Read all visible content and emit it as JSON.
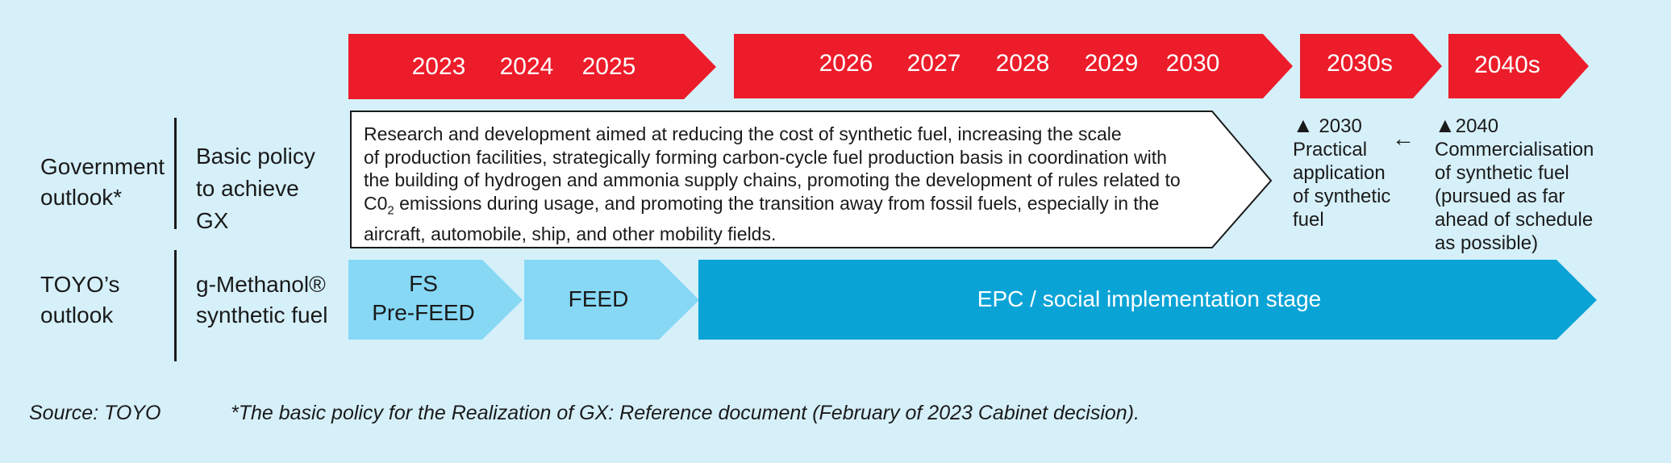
{
  "timeline": {
    "group1_years": [
      "2023",
      "2024",
      "2025"
    ],
    "group2_years": [
      "2026",
      "2027",
      "2028",
      "2029",
      "2030"
    ],
    "decade1": "2030s",
    "decade2": "2040s"
  },
  "government": {
    "label_line1": "Government",
    "label_line2": "outlook*",
    "policy_line1": "Basic policy",
    "policy_line2": "to achieve",
    "policy_line3": "GX",
    "description_lines": [
      "Research and development aimed at reducing the cost of synthetic fuel, increasing the scale",
      "of production facilities, strategically forming carbon-cycle fuel production basis in coordination with",
      "the building of hydrogen and ammonia supply chains, promoting the development of rules related to",
      "emissions during usage, and promoting the transition away from fossil fuels, especially in the",
      "aircraft, automobile, ship, and other mobility fields."
    ],
    "co2_main": "C0",
    "co2_sub": "2"
  },
  "milestones": {
    "m2030_triangle": "▲",
    "m2030_year": "2030",
    "m2030_lines": [
      "Practical",
      "application",
      "of synthetic",
      "fuel"
    ],
    "arrow": "←",
    "m2040_triangle": "▲",
    "m2040_year": "2040",
    "m2040_lines": [
      "Commercialisation",
      "of synthetic fuel",
      "(pursued as far",
      "ahead of schedule",
      "as possible)"
    ]
  },
  "toyo": {
    "label_line1": "TOYO’s",
    "label_line2": "outlook",
    "product_line1": "g-Methanol®",
    "product_line2": "synthetic fuel",
    "stage1_line1": "FS",
    "stage1_line2": "Pre-FEED",
    "stage2": "FEED",
    "stage3": "EPC / social implementation stage"
  },
  "footer": {
    "source": "Source: TOYO",
    "note": "*The basic policy for the Realization of GX: Reference document (February of 2023 Cabinet decision)."
  },
  "colors": {
    "background": "#d6f0fa",
    "timeline_red": "#ec1c2a",
    "stage_light": "#86d8f5",
    "stage_dark": "#0aa3d6"
  }
}
